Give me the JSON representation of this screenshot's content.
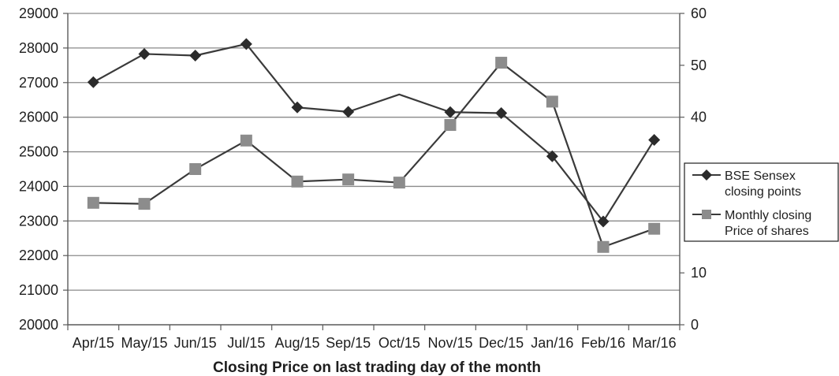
{
  "chart_data": {
    "type": "line",
    "xlabel": "Closing Price on last trading day of the month",
    "categories": [
      "Apr/15",
      "May/15",
      "Jun/15",
      "Jul/15",
      "Aug/15",
      "Sep/15",
      "Oct/15",
      "Nov/15",
      "Dec/15",
      "Jan/16",
      "Feb/16",
      "Mar/16"
    ],
    "y_left": {
      "ticks": [
        20000,
        21000,
        22000,
        23000,
        24000,
        25000,
        26000,
        27000,
        28000,
        29000
      ],
      "ylim": [
        20000,
        29000
      ]
    },
    "y_right": {
      "ticks": [
        0,
        10,
        40,
        50,
        60
      ],
      "ylim": [
        0,
        60
      ]
    },
    "grid": true,
    "legend_position": "right",
    "series": [
      {
        "name": "BSE Sensex closing points",
        "axis": "left",
        "marker": "diamond",
        "color": "#2b2b2b",
        "line_color": "#3a3a3a",
        "values": [
          27011,
          27828,
          27781,
          28115,
          26283,
          26155,
          26657,
          26146,
          26118,
          24871,
          22986,
          25342
        ]
      },
      {
        "name": "Monthly closing Price of shares",
        "axis": "right",
        "marker": "square",
        "color": "#8c8c8c",
        "line_color": "#3a3a3a",
        "values": [
          23.5,
          23.3,
          30.0,
          35.5,
          27.6,
          28.0,
          27.4,
          38.5,
          50.5,
          43.0,
          15.0,
          18.5
        ]
      }
    ],
    "legend": [
      {
        "line1": "BSE Sensex",
        "line2": "closing points"
      },
      {
        "line1": "Monthly closing",
        "line2": "Price of shares"
      }
    ]
  }
}
